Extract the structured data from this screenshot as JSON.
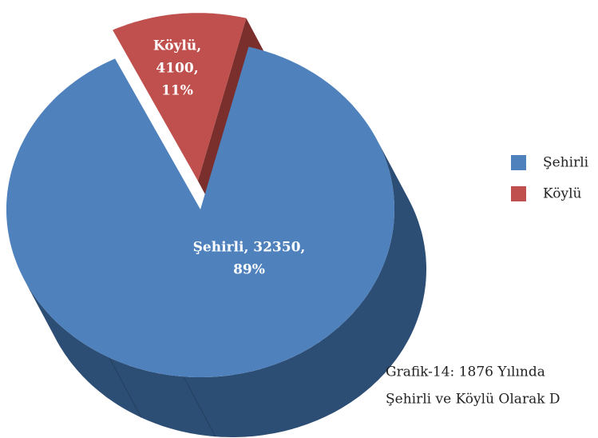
{
  "chart_data": {
    "type": "pie",
    "categories": [
      "Şehirli",
      "Köylü"
    ],
    "values": [
      32350,
      4100
    ],
    "percents": [
      89,
      11
    ],
    "value_labels": [
      [
        "Şehirli, 32350,",
        "89%"
      ],
      [
        "Köylü,",
        "4100,",
        "11%"
      ]
    ],
    "colors": [
      "#4f81bd",
      "#c0504d"
    ],
    "side_colors": [
      "#2c4d74",
      "#7b2f2d"
    ],
    "legend": "right",
    "caption": [
      "Grafik-14: 1876  Yılında",
      "Şehirli ve Köylü Olarak D"
    ]
  }
}
